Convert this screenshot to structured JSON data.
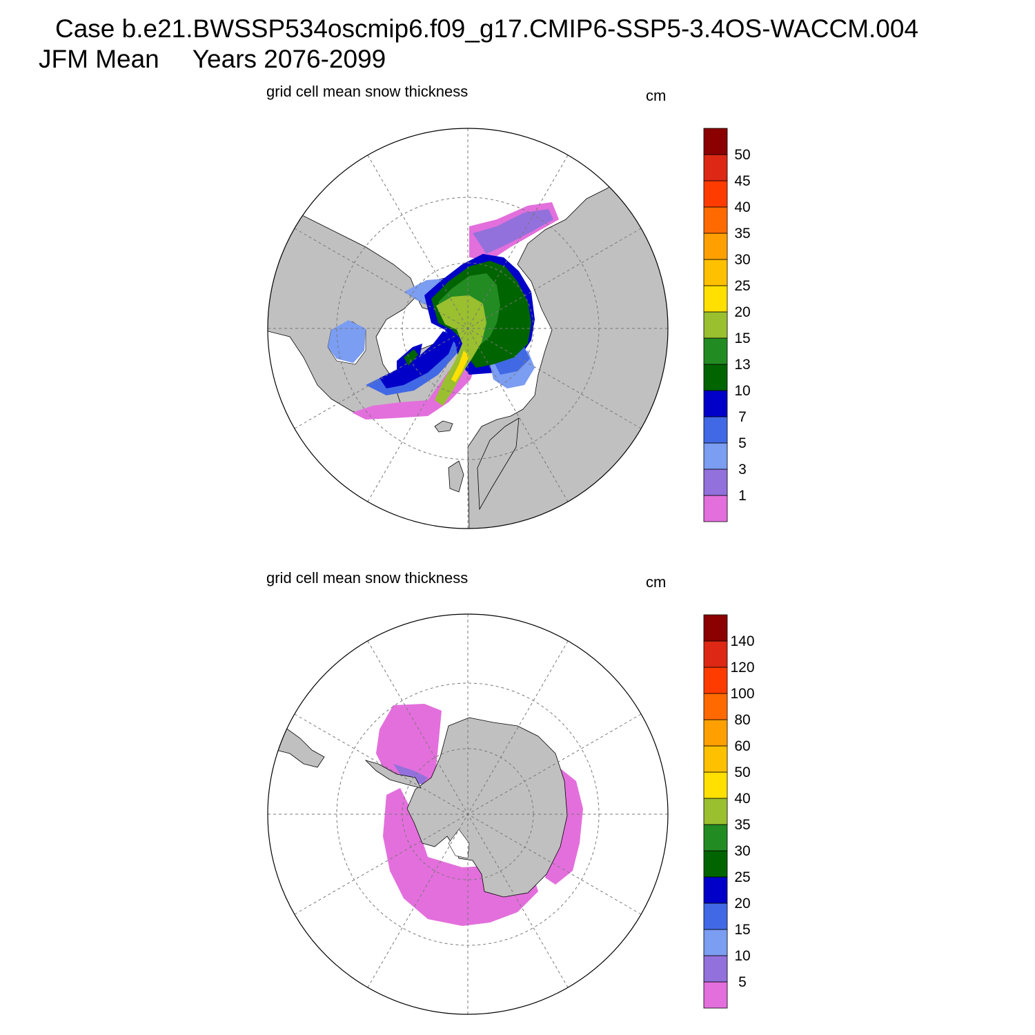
{
  "figure": {
    "case_label": "Case b.e21.BWSSP534oscmip6.f09_g17.CMIP6-SSP5-3.4OS-WACCM.004",
    "season": "JFM Mean",
    "years": "Years 2076-2099"
  },
  "panels": [
    {
      "title": "grid cell mean snow thickness",
      "units": "cm",
      "hemisphere": "north",
      "colorbar": {
        "labels": [
          "1",
          "3",
          "5",
          "7",
          "10",
          "13",
          "15",
          "20",
          "25",
          "30",
          "35",
          "40",
          "45",
          "50"
        ],
        "colors": [
          "#e36fdc",
          "#9371dc",
          "#7b9df2",
          "#4169e6",
          "#0000c8",
          "#006400",
          "#228b22",
          "#9abf2f",
          "#ffe000",
          "#ffc000",
          "#ffa000",
          "#ff6a00",
          "#ff3c00",
          "#dc2814",
          "#8b0000"
        ]
      }
    },
    {
      "title": "grid cell mean snow thickness",
      "units": "cm",
      "hemisphere": "south",
      "colorbar": {
        "labels": [
          "5",
          "10",
          "15",
          "20",
          "25",
          "30",
          "35",
          "40",
          "50",
          "60",
          "80",
          "100",
          "120",
          "140"
        ],
        "colors": [
          "#e36fdc",
          "#9371dc",
          "#7b9df2",
          "#4169e6",
          "#0000c8",
          "#006400",
          "#228b22",
          "#9abf2f",
          "#ffe000",
          "#ffc000",
          "#ffa000",
          "#ff6a00",
          "#ff3c00",
          "#dc2814",
          "#8b0000"
        ]
      }
    }
  ],
  "colors": {
    "land": "#c0c0c0",
    "ocean": "#ffffff",
    "grid": "#777777"
  }
}
